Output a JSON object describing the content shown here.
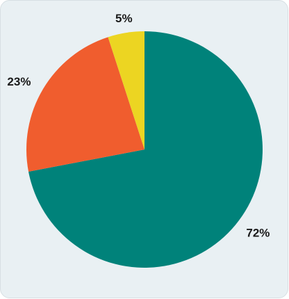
{
  "chart_data": {
    "type": "pie",
    "title": "",
    "slices": [
      {
        "label": "72%",
        "value": 72,
        "color": "#00827a"
      },
      {
        "label": "23%",
        "value": 23,
        "color": "#f05d2e"
      },
      {
        "label": "5%",
        "value": 5,
        "color": "#ecd522"
      }
    ],
    "start_angle_deg": 0,
    "direction": "clockwise",
    "legend": "none",
    "background_color": "#e9f0f3"
  }
}
